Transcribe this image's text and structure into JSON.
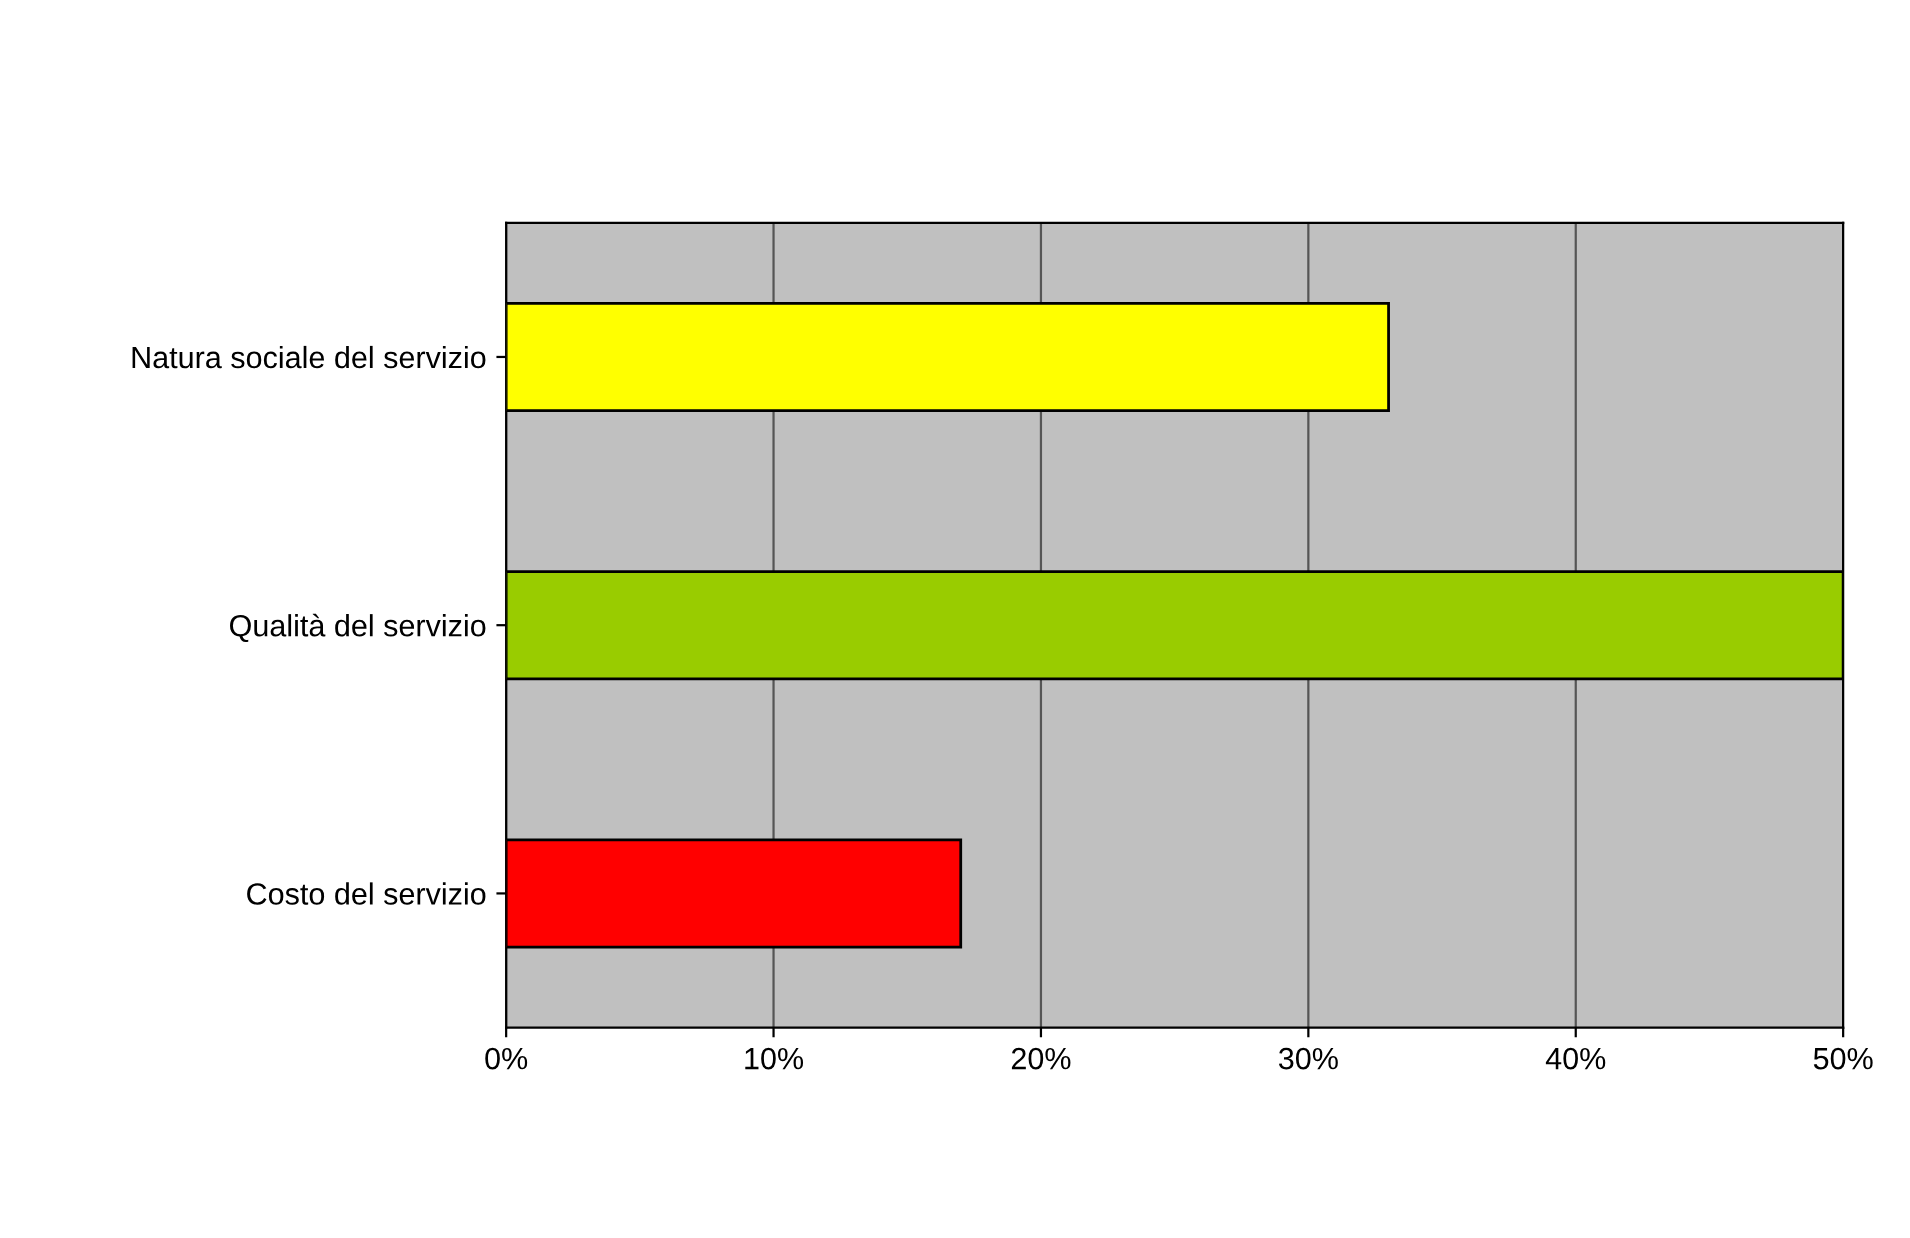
{
  "chart_data": {
    "type": "bar",
    "orientation": "horizontal",
    "categories": [
      "Natura sociale del servizio",
      "Qualità del servizio",
      "Costo del servizio"
    ],
    "values": [
      33,
      50,
      17
    ],
    "colors": [
      "#ffff00",
      "#99cc00",
      "#ff0000"
    ],
    "xlim": [
      0,
      50
    ],
    "xticks": [
      {
        "value": 0,
        "label": "0%"
      },
      {
        "value": 10,
        "label": "10%"
      },
      {
        "value": 20,
        "label": "20%"
      },
      {
        "value": 30,
        "label": "30%"
      },
      {
        "value": 40,
        "label": "40%"
      },
      {
        "value": 50,
        "label": "50%"
      }
    ],
    "grid": "x"
  }
}
